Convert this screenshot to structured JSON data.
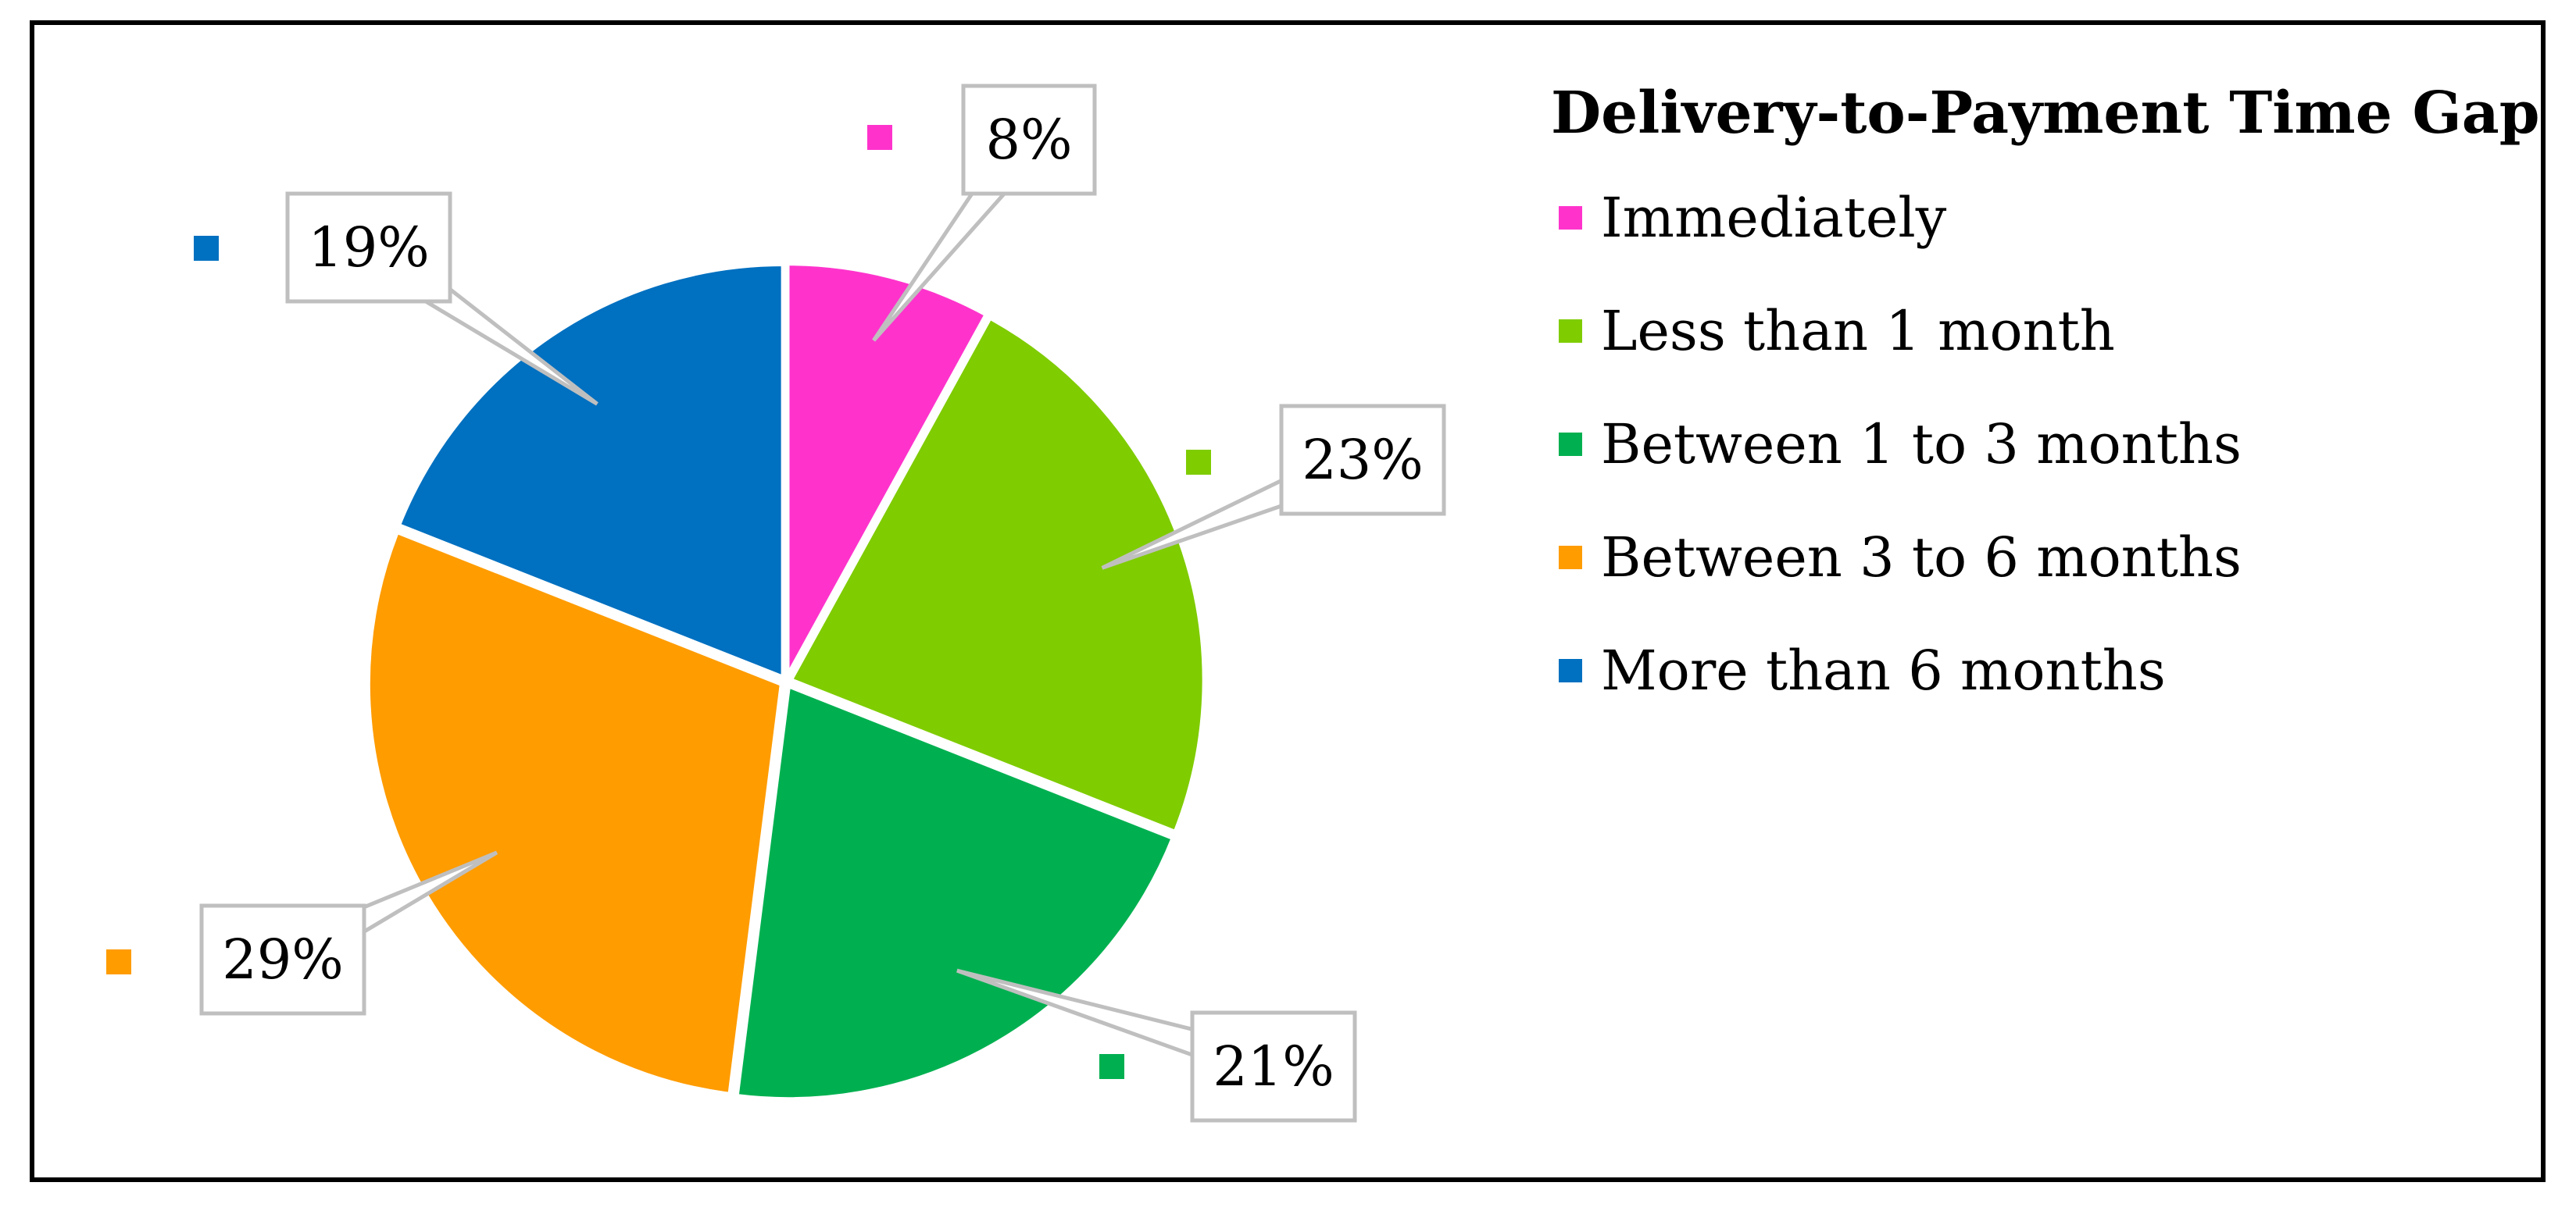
{
  "chart_data": {
    "type": "pie",
    "title": "",
    "legend_title": "Delivery-to-Payment Time Gap",
    "legend_position": "right",
    "categories": [
      "Immediately",
      "Less than 1 month",
      "Between 1 to 3 months",
      "Between 3 to 6 months",
      "More than 6 months"
    ],
    "values": [
      8,
      23,
      21,
      29,
      19
    ],
    "labels": [
      "8%",
      "23%",
      "21%",
      "29%",
      "19%"
    ],
    "colors": [
      "#FF33CC",
      "#7FCC00",
      "#00B050",
      "#FF9C00",
      "#0070C0"
    ],
    "start_angle_deg": 0,
    "direction": "clockwise",
    "exploded": true
  }
}
